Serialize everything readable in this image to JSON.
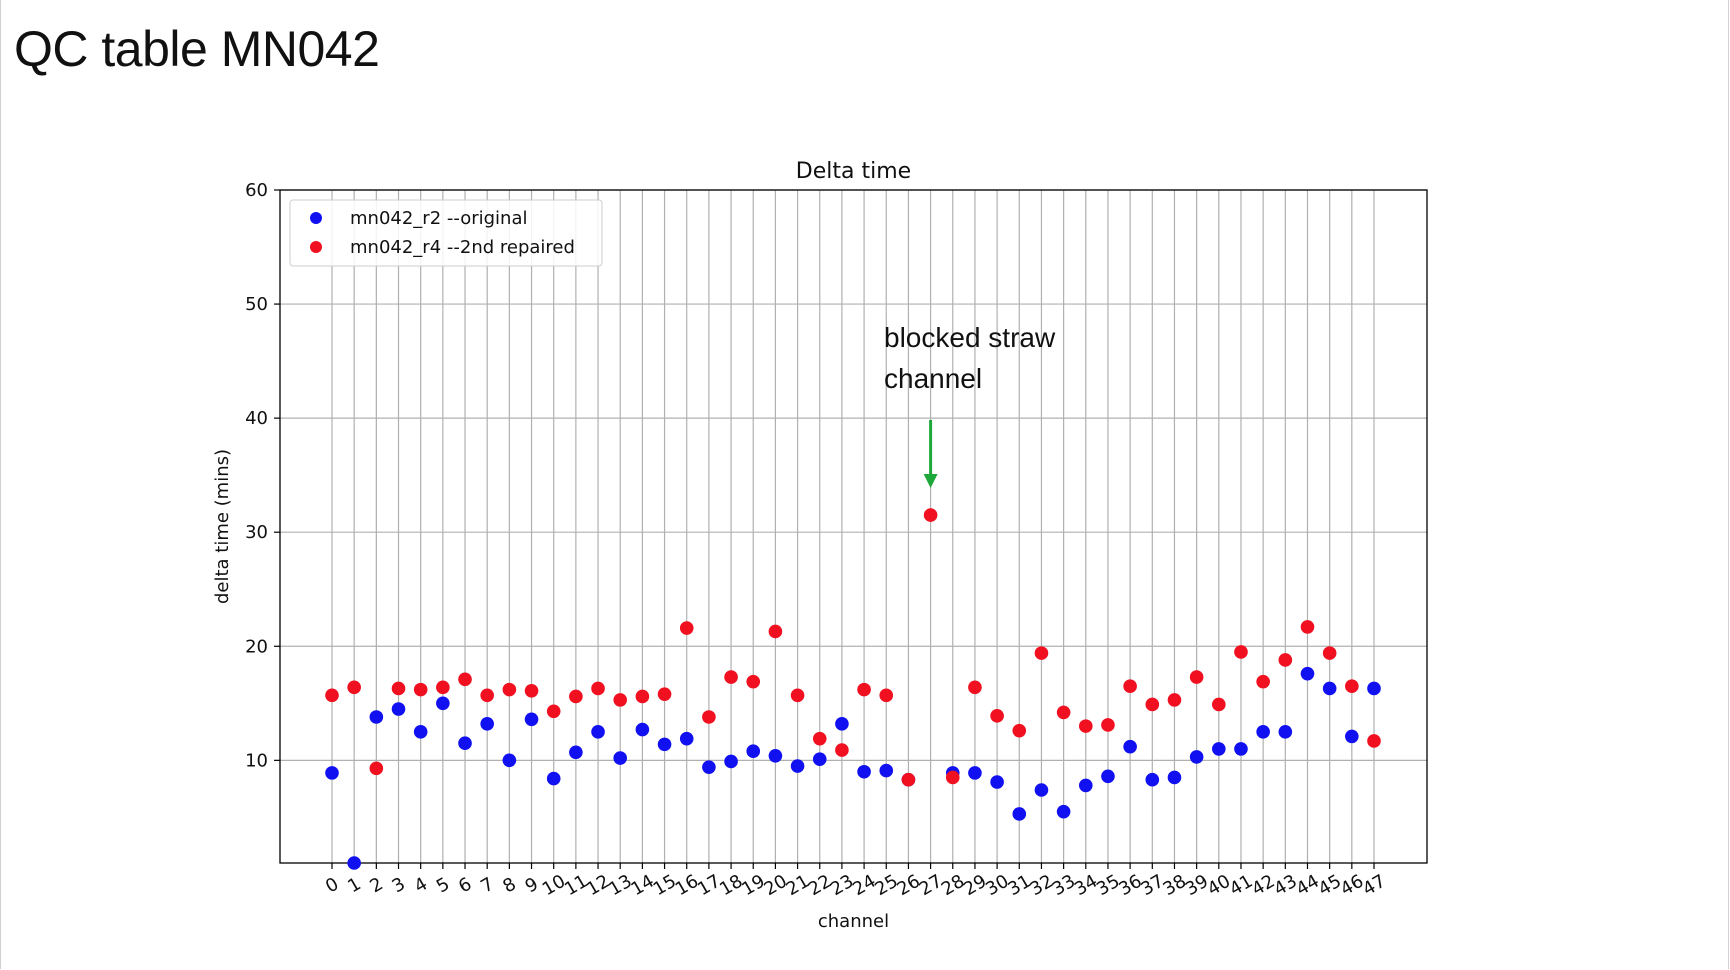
{
  "slide": {
    "title": "QC table MN042"
  },
  "annotation": {
    "line1": "blocked straw",
    "line2": "channel"
  },
  "colors": {
    "series_original": "#1010f0",
    "series_repaired": "#f01020",
    "arrow": "#1fa83a",
    "grid": "#b0b0b0"
  },
  "chart_data": {
    "type": "scatter",
    "title": "Delta time",
    "xlabel": "channel",
    "ylabel": "delta time (mins)",
    "ylim": [
      1,
      60
    ],
    "yticks": [
      10,
      20,
      30,
      40,
      50,
      60
    ],
    "x": [
      0,
      1,
      2,
      3,
      4,
      5,
      6,
      7,
      8,
      9,
      10,
      11,
      12,
      13,
      14,
      15,
      16,
      17,
      18,
      19,
      20,
      21,
      22,
      23,
      24,
      25,
      26,
      27,
      28,
      29,
      30,
      31,
      32,
      33,
      34,
      35,
      36,
      37,
      38,
      39,
      40,
      41,
      42,
      43,
      44,
      45,
      46,
      47
    ],
    "grid": true,
    "legend_position": "top-left",
    "series": [
      {
        "name": "mn042_r2 --original",
        "values": [
          8.9,
          1.0,
          13.8,
          14.5,
          12.5,
          15.0,
          11.5,
          13.2,
          10.0,
          13.6,
          8.4,
          10.7,
          12.5,
          10.2,
          12.7,
          11.4,
          11.9,
          9.4,
          9.9,
          10.8,
          10.4,
          9.5,
          10.1,
          13.2,
          9.0,
          9.1,
          8.3,
          null,
          8.9,
          8.9,
          8.1,
          5.3,
          7.4,
          5.5,
          7.8,
          8.6,
          11.2,
          8.3,
          8.5,
          10.3,
          11.0,
          11.0,
          12.5,
          12.5,
          17.6,
          16.3,
          12.1,
          16.3
        ]
      },
      {
        "name": "mn042_r4 --2nd repaired",
        "values": [
          15.7,
          16.4,
          9.3,
          16.3,
          16.2,
          16.4,
          17.1,
          15.7,
          16.2,
          16.1,
          14.3,
          15.6,
          16.3,
          15.3,
          15.6,
          15.8,
          21.6,
          13.8,
          17.3,
          16.9,
          21.3,
          15.7,
          11.9,
          10.9,
          16.2,
          15.7,
          8.3,
          31.5,
          8.5,
          16.4,
          13.9,
          12.6,
          19.4,
          14.2,
          13.0,
          13.1,
          16.5,
          14.9,
          15.3,
          17.3,
          14.9,
          19.5,
          16.9,
          18.8,
          21.7,
          19.4,
          16.5,
          11.7
        ]
      }
    ]
  }
}
